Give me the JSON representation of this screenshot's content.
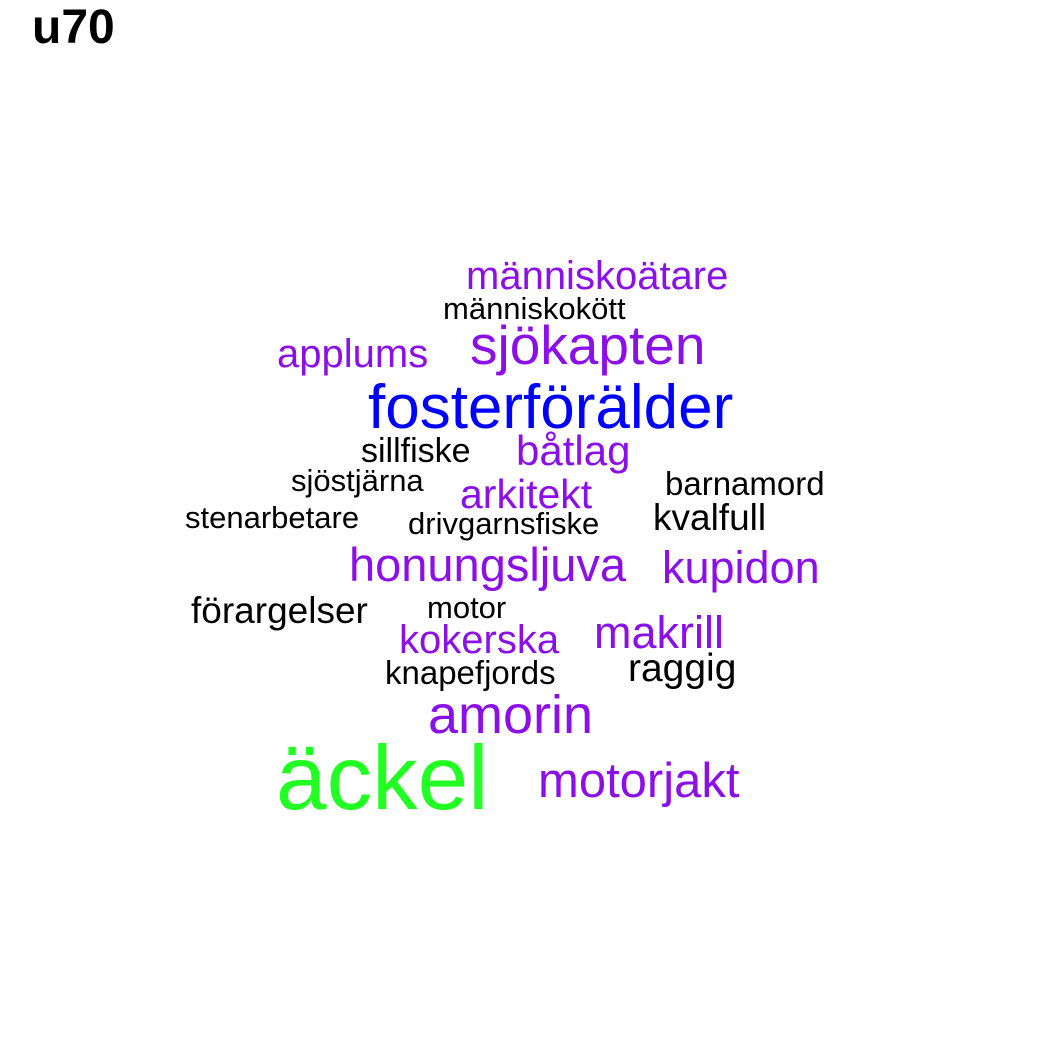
{
  "title": "u70",
  "colors": {
    "black": "#000000",
    "purple": "#8b10e8",
    "blue": "#0000ff",
    "green": "#22ff22"
  },
  "words": [
    {
      "id": "manniskoatare",
      "text": "människoätare",
      "color": "purple"
    },
    {
      "id": "manniskokott",
      "text": "människokött",
      "color": "black"
    },
    {
      "id": "applums",
      "text": "applums",
      "color": "purple"
    },
    {
      "id": "sjokapten",
      "text": "sjökapten",
      "color": "purple"
    },
    {
      "id": "fosterforalder",
      "text": "fosterförälder",
      "color": "blue"
    },
    {
      "id": "sillfiske",
      "text": "sillfiske",
      "color": "black"
    },
    {
      "id": "batlag",
      "text": "båtlag",
      "color": "purple"
    },
    {
      "id": "sjostjarna",
      "text": "sjöstjärna",
      "color": "black"
    },
    {
      "id": "arkitekt",
      "text": "arkitekt",
      "color": "purple"
    },
    {
      "id": "barnamord",
      "text": "barnamord",
      "color": "black"
    },
    {
      "id": "stenarbetare",
      "text": "stenarbetare",
      "color": "black"
    },
    {
      "id": "drivgarnsfiske",
      "text": "drivgarnsfiske",
      "color": "black"
    },
    {
      "id": "kvalfull",
      "text": "kvalfull",
      "color": "black"
    },
    {
      "id": "honungsljuva",
      "text": "honungsljuva",
      "color": "purple"
    },
    {
      "id": "kupidon",
      "text": "kupidon",
      "color": "purple"
    },
    {
      "id": "forargelser",
      "text": "förargelser",
      "color": "black"
    },
    {
      "id": "motor",
      "text": "motor",
      "color": "black"
    },
    {
      "id": "kokerska",
      "text": "kokerska",
      "color": "purple"
    },
    {
      "id": "makrill",
      "text": "makrill",
      "color": "purple"
    },
    {
      "id": "knapefjords",
      "text": "knapefjords",
      "color": "black"
    },
    {
      "id": "raggig",
      "text": "raggig",
      "color": "black"
    },
    {
      "id": "amorin",
      "text": "amorin",
      "color": "purple"
    },
    {
      "id": "ackel",
      "text": "äckel",
      "color": "green"
    },
    {
      "id": "motorjakt",
      "text": "motorjakt",
      "color": "purple"
    }
  ]
}
